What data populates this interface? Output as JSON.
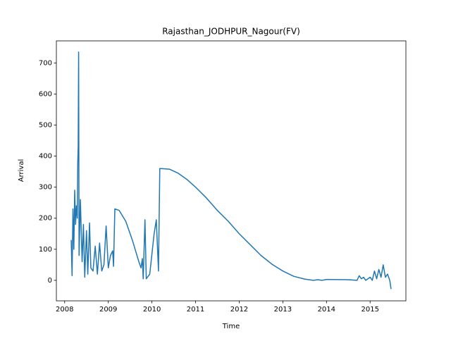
{
  "chart_data": {
    "type": "line",
    "title": "Rajasthan_JODHPUR_Nagour(FV)",
    "x_label": "Time",
    "y_label": "Arrival",
    "x": [
      2008.15,
      2008.17,
      2008.19,
      2008.21,
      2008.23,
      2008.25,
      2008.27,
      2008.29,
      2008.3,
      2008.31,
      2008.32,
      2008.33,
      2008.36,
      2008.4,
      2008.43,
      2008.46,
      2008.5,
      2008.53,
      2008.57,
      2008.6,
      2008.65,
      2008.7,
      2008.75,
      2008.8,
      2008.85,
      2008.9,
      2008.95,
      2009.0,
      2009.05,
      2009.1,
      2009.12,
      2009.15,
      2009.25,
      2009.4,
      2009.55,
      2009.7,
      2009.75,
      2009.78,
      2009.8,
      2009.84,
      2009.87,
      2009.95,
      2010.05,
      2010.1,
      2010.15,
      2010.18,
      2010.2,
      2010.4,
      2010.6,
      2010.8,
      2011.0,
      2011.25,
      2011.5,
      2011.75,
      2012.0,
      2012.25,
      2012.5,
      2012.75,
      2013.0,
      2013.25,
      2013.5,
      2013.7,
      2013.8,
      2013.9,
      2014.0,
      2014.5,
      2014.7,
      2014.75,
      2014.8,
      2014.85,
      2014.9,
      2015.0,
      2015.05,
      2015.1,
      2015.15,
      2015.2,
      2015.25,
      2015.3,
      2015.35,
      2015.4,
      2015.45,
      2015.48
    ],
    "series": [
      {
        "color": "#1f77b4",
        "values": [
          130,
          15,
          230,
          100,
          290,
          180,
          240,
          200,
          380,
          430,
          735,
          80,
          260,
          60,
          180,
          10,
          160,
          20,
          185,
          40,
          30,
          110,
          20,
          120,
          30,
          50,
          175,
          40,
          80,
          95,
          45,
          230,
          225,
          190,
          130,
          60,
          40,
          70,
          5,
          195,
          5,
          20,
          150,
          195,
          30,
          360,
          360,
          358,
          345,
          325,
          300,
          265,
          225,
          190,
          150,
          115,
          80,
          52,
          30,
          13,
          4,
          0,
          2,
          0,
          3,
          2,
          0,
          15,
          5,
          10,
          0,
          10,
          0,
          30,
          5,
          35,
          10,
          50,
          10,
          20,
          0,
          -28
        ]
      }
    ],
    "xlim": [
      2007.81,
      2015.82
    ],
    "xticks": [
      2008,
      2009,
      2010,
      2011,
      2012,
      2013,
      2014,
      2015
    ],
    "ylim": [
      -66,
      771
    ],
    "yticks": [
      0,
      100,
      200,
      300,
      400,
      500,
      600,
      700
    ]
  }
}
